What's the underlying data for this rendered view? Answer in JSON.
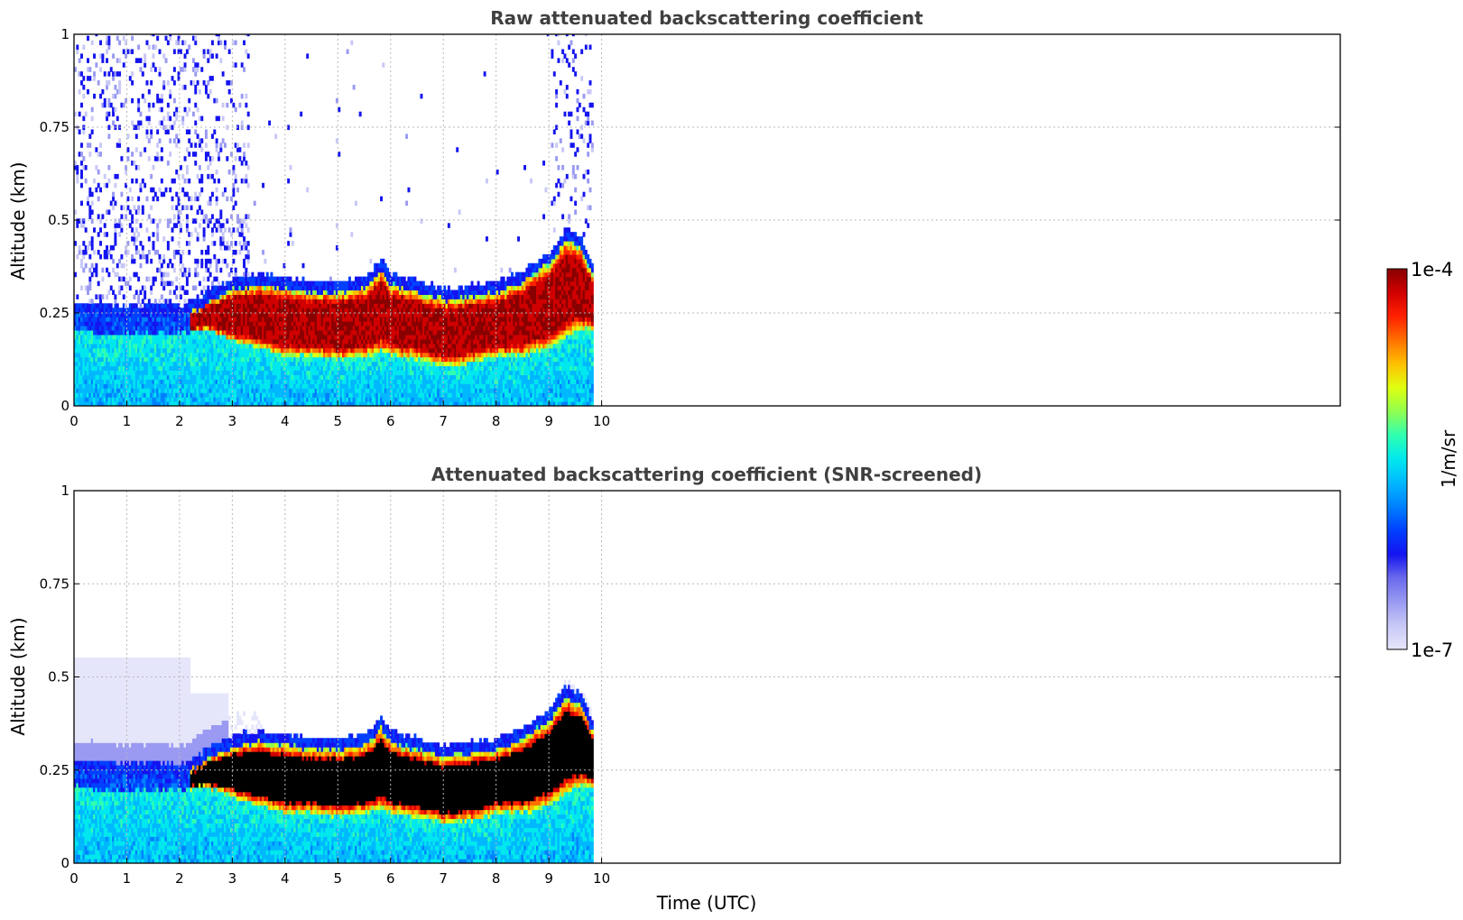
{
  "chart_data": [
    {
      "type": "heatmap",
      "title": "Raw attenuated backscattering coefficient",
      "xlabel": "",
      "ylabel": "Altitude (km)",
      "xlim": [
        0,
        24
      ],
      "ylim": [
        0,
        1
      ],
      "xticks": [
        "0",
        "1",
        "2",
        "3",
        "4",
        "5",
        "6",
        "7",
        "8",
        "9",
        "10"
      ],
      "yticks": [
        "0",
        "0.25",
        "0.5",
        "0.75",
        "1"
      ],
      "grid": true,
      "data_end_hour": 9.8,
      "layer": {
        "x": [
          0,
          0.5,
          1,
          1.5,
          2,
          2.5,
          3,
          3.5,
          4,
          4.5,
          5,
          5.5,
          5.8,
          6,
          6.5,
          7,
          7.5,
          8,
          8.5,
          9,
          9.3,
          9.6,
          9.8
        ],
        "top_km": [
          0.24,
          0.24,
          0.23,
          0.24,
          0.23,
          0.27,
          0.31,
          0.32,
          0.31,
          0.3,
          0.3,
          0.31,
          0.36,
          0.32,
          0.3,
          0.28,
          0.29,
          0.3,
          0.33,
          0.38,
          0.44,
          0.42,
          0.35
        ],
        "bottom_km": [
          0.2,
          0.19,
          0.19,
          0.19,
          0.19,
          0.2,
          0.17,
          0.15,
          0.13,
          0.13,
          0.12,
          0.13,
          0.14,
          0.13,
          0.12,
          0.1,
          0.11,
          0.13,
          0.13,
          0.15,
          0.18,
          0.2,
          0.2
        ]
      },
      "noise_regions": [
        "0-3.3 h above 0.25 km (dense)",
        "9.0-9.8 h above 0.45 km"
      ]
    },
    {
      "type": "heatmap",
      "title": "Attenuated backscattering coefficient (SNR-screened)",
      "xlabel": "Time (UTC)",
      "ylabel": "Altitude (km)",
      "xlim": [
        0,
        24
      ],
      "ylim": [
        0,
        1
      ],
      "xticks": [
        "0",
        "1",
        "2",
        "3",
        "4",
        "5",
        "6",
        "7",
        "8",
        "9",
        "10"
      ],
      "yticks": [
        "0",
        "0.25",
        "0.5",
        "0.75",
        "1"
      ],
      "grid": true,
      "saturated_color": "#000000",
      "screened_haze_top_km": 0.55
    }
  ],
  "colorbar": {
    "label": "1/m/sr",
    "max_label": "1e-4",
    "min_label": "1e-7",
    "colormap": [
      "#e6e6fb",
      "#c8c8f7",
      "#9a9af2",
      "#6a6aec",
      "#1414f0",
      "#0040ff",
      "#0080ff",
      "#00b8ff",
      "#00e8ee",
      "#30ffb0",
      "#90ff50",
      "#e0ff10",
      "#ffc000",
      "#ff7000",
      "#ff2000",
      "#d00000",
      "#880000"
    ]
  }
}
